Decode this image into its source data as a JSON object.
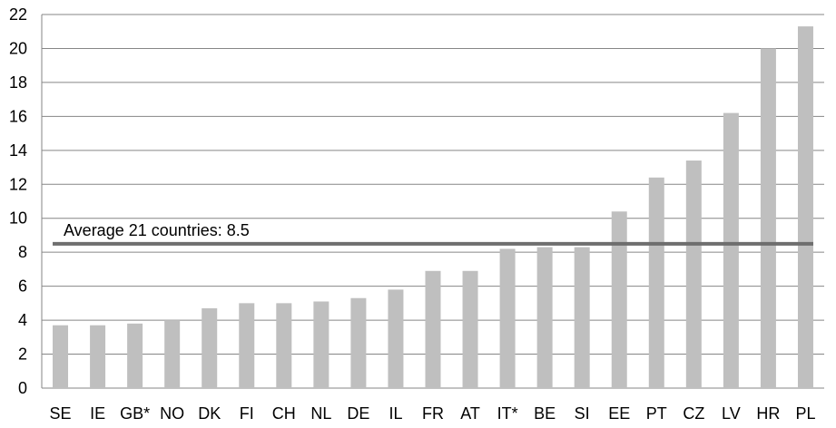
{
  "chart_data": {
    "type": "bar",
    "categories": [
      "SE",
      "IE",
      "GB*",
      "NO",
      "DK",
      "FI",
      "CH",
      "NL",
      "DE",
      "IL",
      "FR",
      "AT",
      "IT*",
      "BE",
      "SI",
      "EE",
      "PT",
      "CZ",
      "LV",
      "HR",
      "PL"
    ],
    "values": [
      3.7,
      3.7,
      3.8,
      4.0,
      4.7,
      5.0,
      5.0,
      5.1,
      5.3,
      5.8,
      6.9,
      6.9,
      8.2,
      8.3,
      8.3,
      10.4,
      12.4,
      13.4,
      16.2,
      20.0,
      21.3
    ],
    "ylim": [
      0,
      22
    ],
    "yticks": [
      0,
      2,
      4,
      6,
      8,
      10,
      12,
      14,
      16,
      18,
      20,
      22
    ],
    "grid": true,
    "bar_color": "#bfbfbf",
    "grid_color": "#868686",
    "reference_line": {
      "value": 8.5,
      "label": "Average 21 countries: 8.5",
      "color": "#6e6e6e"
    }
  }
}
